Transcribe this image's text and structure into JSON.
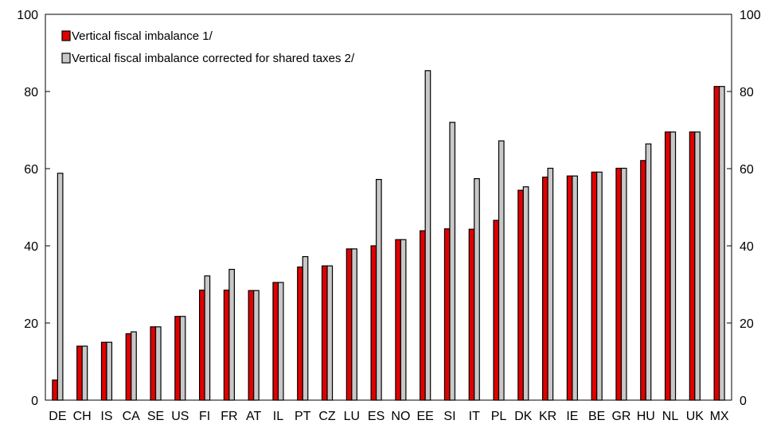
{
  "chart_data": {
    "type": "bar",
    "title": "",
    "xlabel": "",
    "ylabel": "",
    "ylim": [
      0,
      100
    ],
    "y_ticks": [
      "0",
      "20",
      "40",
      "60",
      "80",
      "100"
    ],
    "secondary_y_axis": true,
    "grid": false,
    "legend_position": "top-left",
    "categories": [
      "DE",
      "CH",
      "IS",
      "CA",
      "SE",
      "US",
      "FI",
      "FR",
      "AT",
      "IL",
      "PT",
      "CZ",
      "LU",
      "ES",
      "NO",
      "EE",
      "SI",
      "IT",
      "PL",
      "DK",
      "KR",
      "IE",
      "BE",
      "GR",
      "HU",
      "NL",
      "UK",
      "MX"
    ],
    "series": [
      {
        "name": "Vertical fiscal imbalance 1/",
        "color": "#e00000",
        "values": [
          5.2,
          14.0,
          15.0,
          17.2,
          19.0,
          21.7,
          28.5,
          28.5,
          28.4,
          30.5,
          34.5,
          34.8,
          39.2,
          40.0,
          41.6,
          43.9,
          44.4,
          44.3,
          46.6,
          54.4,
          57.8,
          58.1,
          59.1,
          60.1,
          62.1,
          69.5,
          69.5,
          81.3
        ]
      },
      {
        "name": "Vertical fiscal imbalance corrected for shared taxes 2/",
        "color": "#c8c8c8",
        "values": [
          58.8,
          14.0,
          15.0,
          17.7,
          19.0,
          21.7,
          32.2,
          33.9,
          28.4,
          30.5,
          37.2,
          34.8,
          39.2,
          57.2,
          41.6,
          85.4,
          72.0,
          57.4,
          67.2,
          55.3,
          60.1,
          58.1,
          59.1,
          60.1,
          66.4,
          69.5,
          69.5,
          81.3
        ]
      }
    ]
  }
}
